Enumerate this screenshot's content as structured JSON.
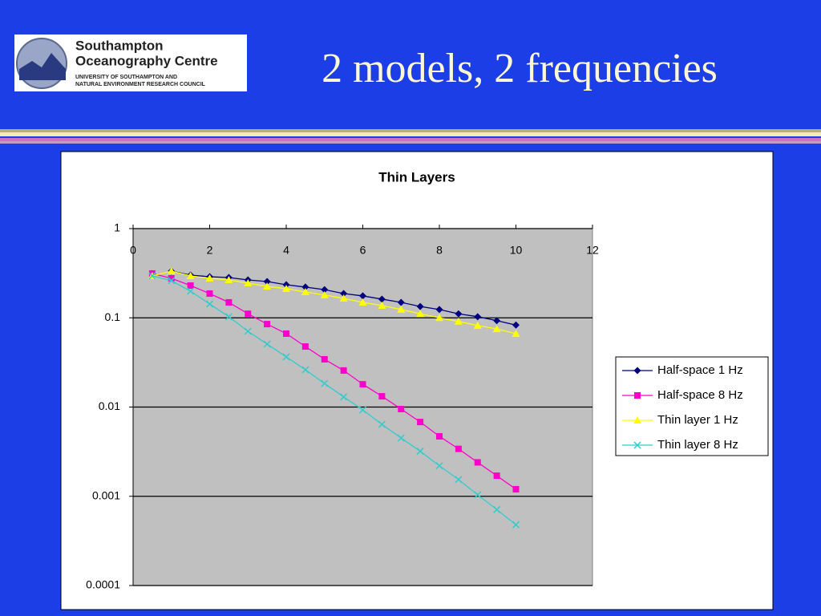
{
  "header": {
    "logo": {
      "name_line1": "Southampton",
      "name_line2": "Oceanography Centre",
      "sub_line1": "UNIVERSITY OF SOUTHAMPTON AND",
      "sub_line2": "NATURAL ENVIRONMENT RESEARCH COUNCIL"
    },
    "title": "2 models, 2 frequencies"
  },
  "chart_data": {
    "type": "line",
    "title": "Thin Layers",
    "x": [
      0.5,
      1,
      1.5,
      2,
      2.5,
      3,
      3.5,
      4,
      4.5,
      5,
      5.5,
      6,
      6.5,
      7,
      7.5,
      8,
      8.5,
      9,
      9.5,
      10
    ],
    "series": [
      {
        "name": "Half-space 1 Hz",
        "color": "#000080",
        "marker": "diamond",
        "values": [
          null,
          0.334,
          0.301,
          0.289,
          0.283,
          0.266,
          0.255,
          0.235,
          0.221,
          0.207,
          0.187,
          0.176,
          0.162,
          0.149,
          0.134,
          0.124,
          0.111,
          0.103,
          0.093,
          0.083
        ]
      },
      {
        "name": "Half-space 8 Hz",
        "color": "#ff00cc",
        "marker": "square",
        "values": [
          0.314,
          0.277,
          0.23,
          0.187,
          0.149,
          0.111,
          0.085,
          0.0665,
          0.0477,
          0.0343,
          0.0257,
          0.018,
          0.0132,
          0.0095,
          0.0068,
          0.0047,
          0.0034,
          0.0024,
          0.0017,
          0.0012
        ]
      },
      {
        "name": "Thin layer 1 Hz",
        "color": "#ffff00",
        "marker": "triangle",
        "values": [
          0.295,
          0.334,
          0.295,
          0.277,
          0.266,
          0.245,
          0.225,
          0.212,
          0.195,
          0.18,
          0.165,
          0.149,
          0.137,
          0.124,
          0.111,
          0.1,
          0.091,
          0.082,
          0.075,
          0.0665
        ]
      },
      {
        "name": "Thin layer 8 Hz",
        "color": "#33cccc",
        "marker": "x",
        "values": [
          0.295,
          0.261,
          0.199,
          0.143,
          0.103,
          0.0707,
          0.0508,
          0.0365,
          0.0262,
          0.0184,
          0.013,
          0.0093,
          0.0064,
          0.0045,
          0.0032,
          0.0022,
          0.00154,
          0.00104,
          0.00071,
          0.00048
        ]
      }
    ],
    "xlim": [
      0,
      12
    ],
    "xticks": [
      0,
      2,
      4,
      6,
      8,
      10,
      12
    ],
    "ylim": [
      0.0001,
      1
    ],
    "yticks": [
      1,
      0.1,
      0.01,
      0.001,
      0.0001
    ],
    "log_y": true,
    "grid": true,
    "legend": "right",
    "plot_background": "#c0c0c0"
  }
}
